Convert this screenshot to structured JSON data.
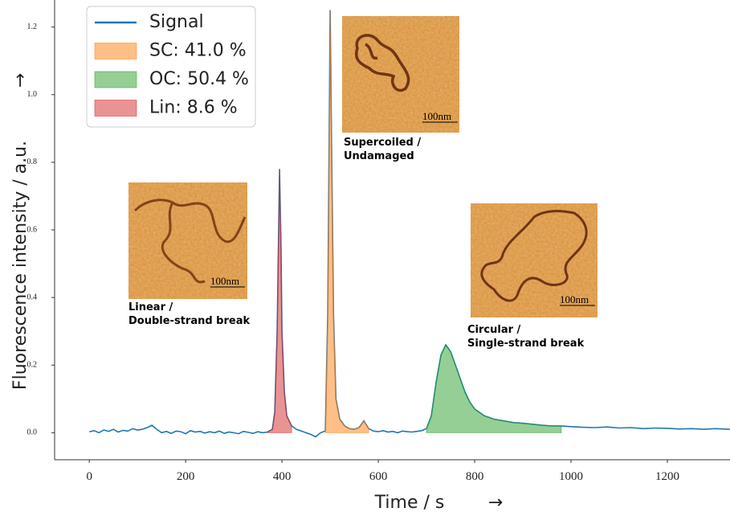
{
  "chart_data": {
    "type": "line",
    "xlabel": "Time / s",
    "ylabel": "Fluorescence intensity / a.u.",
    "arrow": "→",
    "xlim": [
      -72,
      1330
    ],
    "ylim": [
      -0.08,
      1.28
    ],
    "xticks": [
      0,
      200,
      400,
      600,
      800,
      1000,
      1200
    ],
    "yticks": [
      {
        "value": 0,
        "label": "0.0"
      },
      0.2,
      0.4,
      0.6,
      0.8,
      {
        "value": 1,
        "label": "1.0"
      },
      1.2
    ],
    "legend": "upper left",
    "series": [
      {
        "name": "Signal",
        "kind": "line",
        "color": "#1f77b4",
        "x": [
          0,
          10,
          20,
          30,
          40,
          50,
          60,
          70,
          80,
          90,
          100,
          110,
          120,
          130,
          140,
          150,
          160,
          170,
          180,
          190,
          200,
          210,
          220,
          230,
          240,
          250,
          260,
          270,
          280,
          290,
          300,
          310,
          320,
          330,
          340,
          350,
          360,
          370,
          380,
          385,
          390,
          395,
          398,
          400,
          405,
          410,
          420,
          430,
          440,
          450,
          460,
          470,
          480,
          490,
          495,
          500,
          503,
          507,
          512,
          520,
          530,
          540,
          550,
          560,
          570,
          580,
          590,
          600,
          610,
          620,
          630,
          640,
          650,
          660,
          670,
          680,
          690,
          700,
          710,
          720,
          730,
          740,
          750,
          760,
          770,
          780,
          790,
          800,
          820,
          840,
          860,
          880,
          900,
          920,
          940,
          960,
          980,
          1000,
          1025,
          1050,
          1075,
          1100,
          1125,
          1150,
          1175,
          1200,
          1225,
          1250,
          1275,
          1300,
          1330
        ],
        "values": [
          0.003,
          0.006,
          0.0,
          0.008,
          0.004,
          0.01,
          0.002,
          0.007,
          0.005,
          0.012,
          0.008,
          0.01,
          0.015,
          0.022,
          0.01,
          0.0,
          0.004,
          -0.002,
          0.005,
          0.003,
          -0.003,
          0.006,
          0.002,
          0.004,
          -0.001,
          0.003,
          0.0,
          0.005,
          -0.002,
          0.002,
          0.0,
          -0.003,
          0.004,
          0.001,
          -0.002,
          0.003,
          0.0,
          0.002,
          0.01,
          0.06,
          0.3,
          0.78,
          0.55,
          0.3,
          0.12,
          0.05,
          0.02,
          0.01,
          0.005,
          0.0,
          -0.005,
          -0.012,
          0.0,
          0.005,
          0.35,
          1.25,
          0.85,
          0.35,
          0.1,
          0.04,
          0.02,
          0.012,
          0.01,
          0.015,
          0.035,
          0.012,
          0.005,
          0.003,
          0.006,
          0.002,
          0.004,
          0.0,
          0.005,
          0.003,
          0.002,
          0.004,
          0.006,
          0.012,
          0.05,
          0.15,
          0.23,
          0.26,
          0.24,
          0.2,
          0.16,
          0.12,
          0.09,
          0.07,
          0.05,
          0.04,
          0.035,
          0.03,
          0.028,
          0.025,
          0.022,
          0.02,
          0.02,
          0.018,
          0.016,
          0.015,
          0.017,
          0.014,
          0.015,
          0.012,
          0.014,
          0.013,
          0.011,
          0.012,
          0.01,
          0.012,
          0.01
        ]
      },
      {
        "name": "SC: 41.0 %",
        "kind": "area",
        "color": "#ff7f0e",
        "x": [
          490,
          495,
          500,
          503,
          507,
          512,
          520,
          530,
          540,
          550,
          560,
          570,
          580
        ],
        "values": [
          0.005,
          0.35,
          1.25,
          0.85,
          0.35,
          0.1,
          0.04,
          0.02,
          0.012,
          0.01,
          0.015,
          0.035,
          0.012
        ]
      },
      {
        "name": "OC: 50.4 %",
        "kind": "area",
        "color": "#2ca02c",
        "x": [
          700,
          710,
          720,
          730,
          740,
          750,
          760,
          770,
          780,
          790,
          800,
          820,
          840,
          860,
          880,
          900,
          920,
          940,
          960,
          980
        ],
        "values": [
          0.012,
          0.05,
          0.15,
          0.23,
          0.26,
          0.24,
          0.2,
          0.16,
          0.12,
          0.09,
          0.07,
          0.05,
          0.04,
          0.035,
          0.03,
          0.028,
          0.025,
          0.022,
          0.02,
          0.02
        ]
      },
      {
        "name": "Lin: 8.6 %",
        "kind": "area",
        "color": "#d62728",
        "x": [
          370,
          380,
          385,
          390,
          395,
          398,
          400,
          405,
          410,
          420
        ],
        "values": [
          0.002,
          0.01,
          0.06,
          0.3,
          0.78,
          0.55,
          0.3,
          0.12,
          0.05,
          0.02
        ]
      }
    ],
    "insets": [
      {
        "caption": [
          "Linear /",
          "Double-strand break"
        ],
        "scale_bar": "100nm"
      },
      {
        "caption": [
          "Supercoiled /",
          "Undamaged"
        ],
        "scale_bar": "100nm"
      },
      {
        "caption": [
          "Circular /",
          "Single-strand break"
        ],
        "scale_bar": "100nm"
      }
    ]
  }
}
